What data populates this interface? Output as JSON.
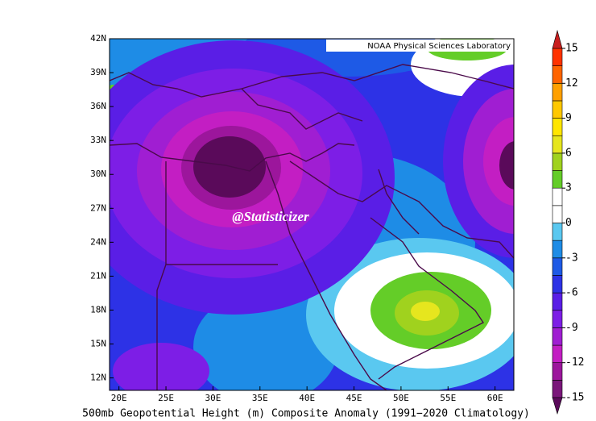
{
  "map": {
    "credit": "NOAA Physical Sciences Laboratory",
    "watermark": "@Statisticizer",
    "caption": "500mb Geopotential Height (m) Composite Anomaly (1991−2020 Climatology)",
    "lon_range": [
      19,
      62
    ],
    "lat_range": [
      10.9,
      42
    ],
    "lon_ticks": [
      {
        "value": 20,
        "label": "20E"
      },
      {
        "value": 25,
        "label": "25E"
      },
      {
        "value": 30,
        "label": "30E"
      },
      {
        "value": 35,
        "label": "35E"
      },
      {
        "value": 40,
        "label": "40E"
      },
      {
        "value": 45,
        "label": "45E"
      },
      {
        "value": 50,
        "label": "50E"
      },
      {
        "value": 55,
        "label": "55E"
      },
      {
        "value": 60,
        "label": "60E"
      }
    ],
    "lat_ticks": [
      {
        "value": 12,
        "label": "12N"
      },
      {
        "value": 15,
        "label": "15N"
      },
      {
        "value": 18,
        "label": "18N"
      },
      {
        "value": 21,
        "label": "21N"
      },
      {
        "value": 24,
        "label": "24N"
      },
      {
        "value": 27,
        "label": "27N"
      },
      {
        "value": 30,
        "label": "30N"
      },
      {
        "value": 33,
        "label": "33N"
      },
      {
        "value": 36,
        "label": "36N"
      },
      {
        "value": 39,
        "label": "39N"
      },
      {
        "value": 42,
        "label": "42N"
      }
    ],
    "colorbar": {
      "range": [
        -15,
        15
      ],
      "ticks": [
        -15,
        -12,
        -9,
        -6,
        -3,
        0,
        3,
        6,
        9,
        12,
        15
      ],
      "under": "#5a0a5a",
      "over": "#c81e1e",
      "colors": [
        "#7a167a",
        "#9c169c",
        "#c31ec3",
        "#a01ed2",
        "#7d1ee6",
        "#5a1ee6",
        "#2d32e6",
        "#1e5ae6",
        "#1e8ce6",
        "#5ac8f0",
        "#ffffff",
        "#ffffff",
        "#64cd28",
        "#a0d21e",
        "#e6e61e",
        "#ffe600",
        "#ffc800",
        "#ffa000",
        "#ff6400",
        "#ff3200"
      ]
    }
  }
}
